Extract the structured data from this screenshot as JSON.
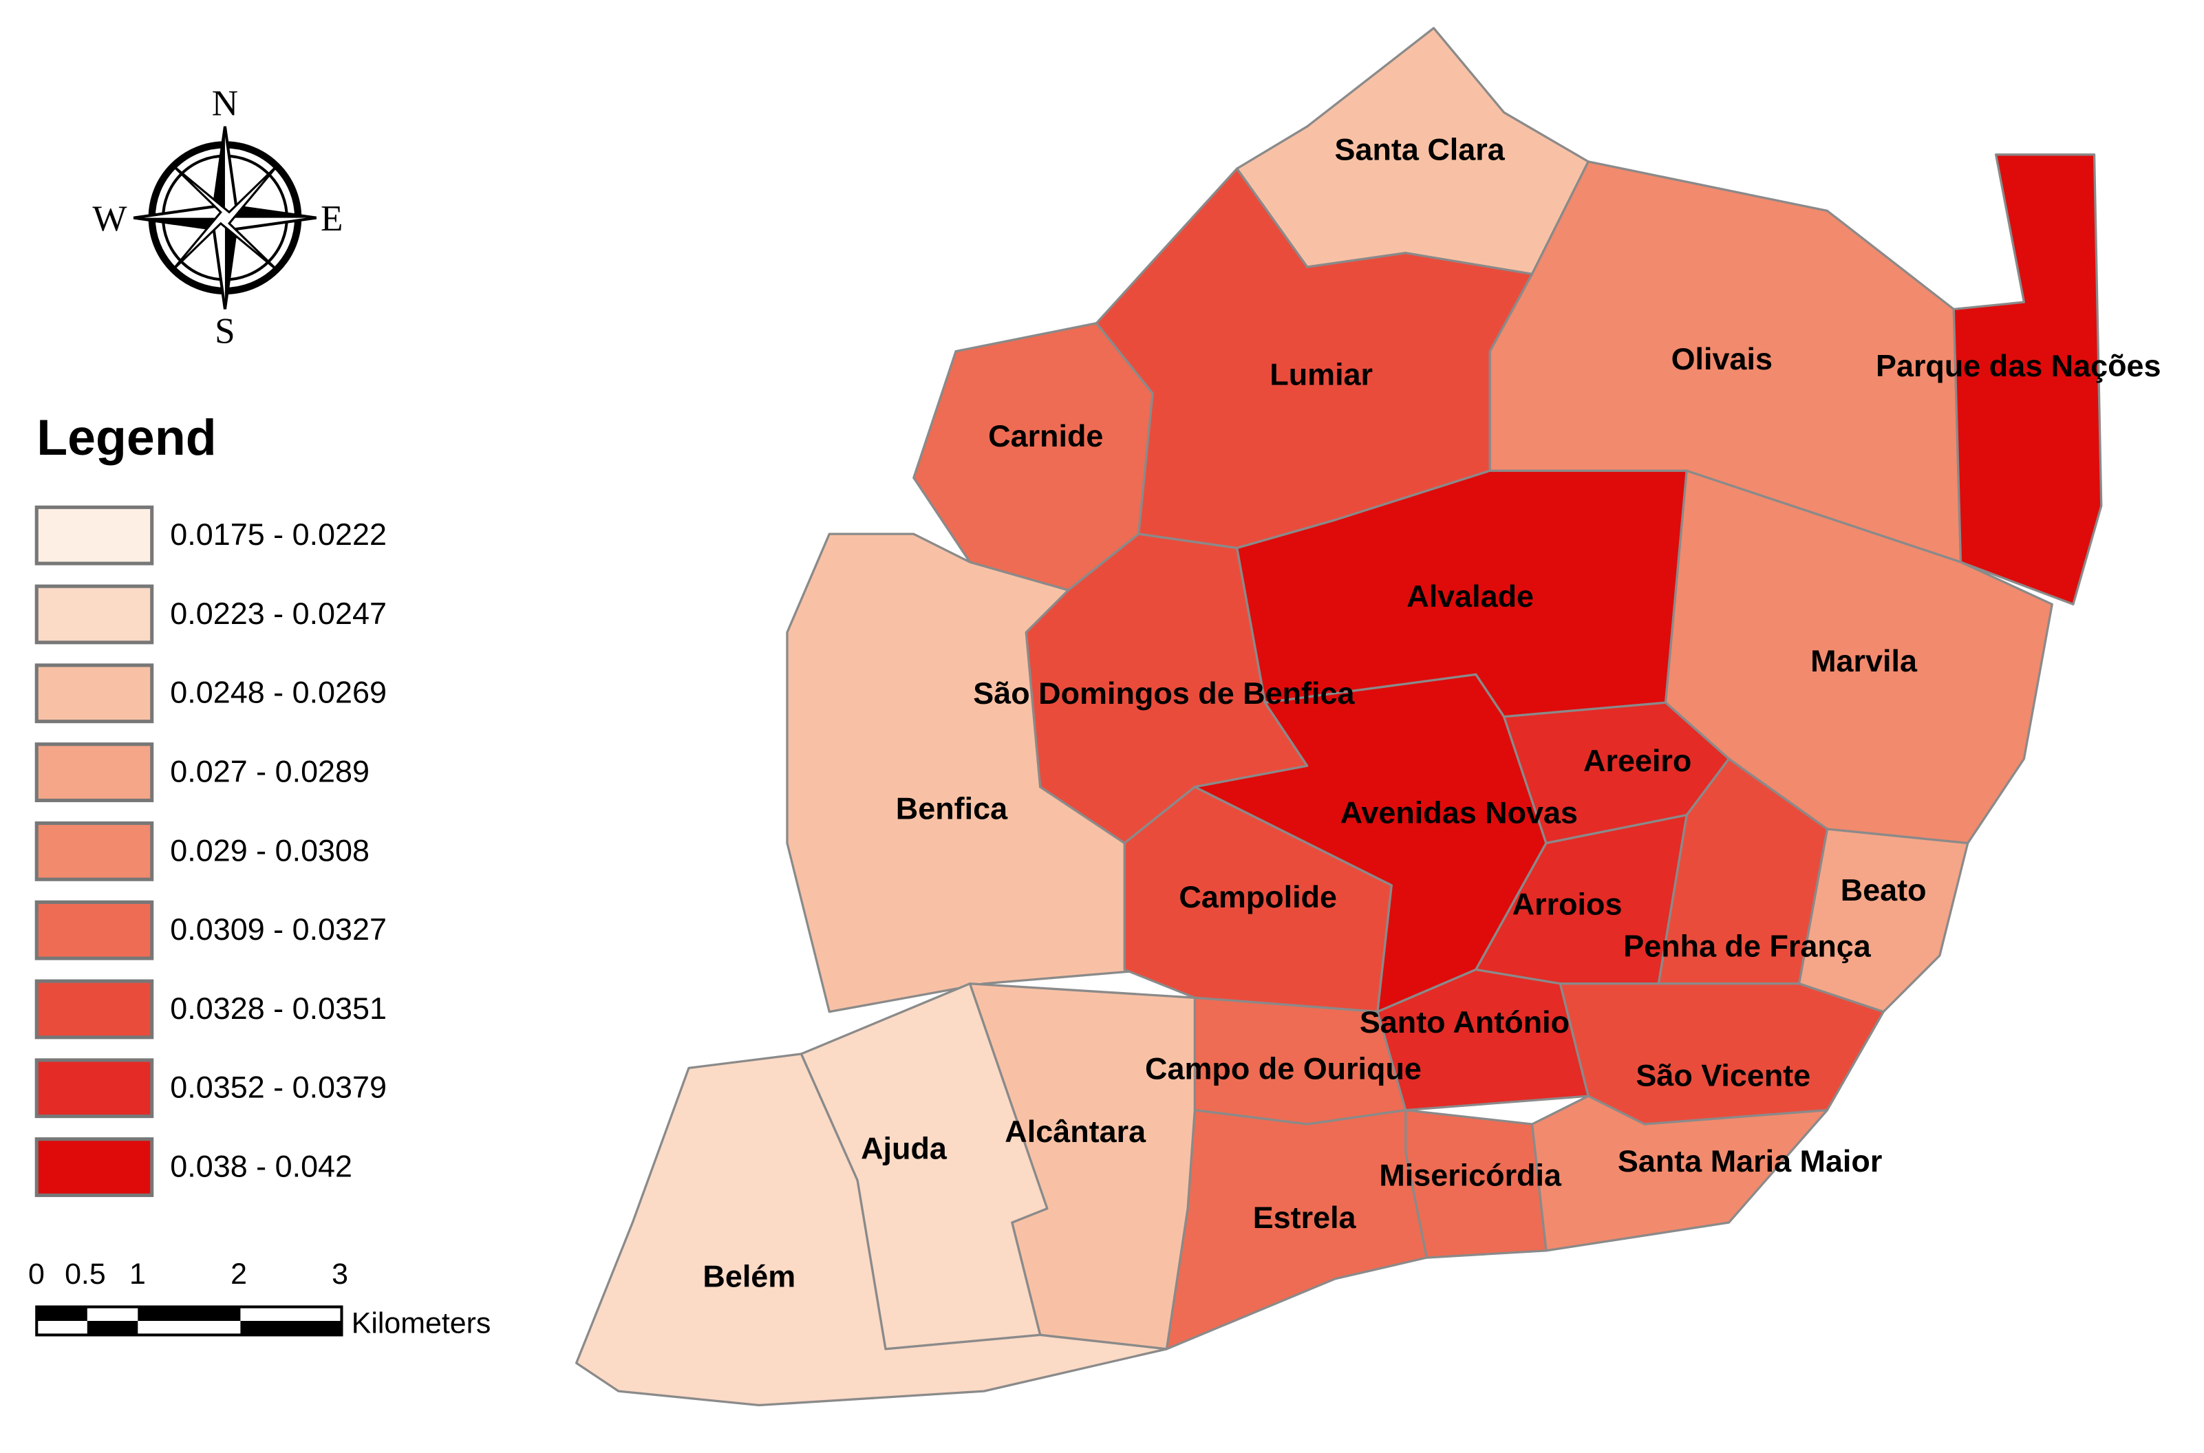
{
  "compass": {
    "north": "N",
    "south": "S",
    "east": "E",
    "west": "W"
  },
  "legend": {
    "title": "Legend",
    "classes": [
      {
        "label": "0.0175 - 0.0222",
        "color": "#fdefe3"
      },
      {
        "label": "0.0223 - 0.0247",
        "color": "#fbdac6"
      },
      {
        "label": "0.0248 - 0.0269",
        "color": "#f8c1a5"
      },
      {
        "label": "0.027 - 0.0289",
        "color": "#f5a688"
      },
      {
        "label": "0.029 - 0.0308",
        "color": "#f28a6d"
      },
      {
        "label": "0.0309 - 0.0327",
        "color": "#ee6c53"
      },
      {
        "label": "0.0328 - 0.0351",
        "color": "#ea4c3c"
      },
      {
        "label": "0.0352 - 0.0379",
        "color": "#e42b26"
      },
      {
        "label": "0.038 - 0.042",
        "color": "#df0b0b"
      }
    ]
  },
  "scale_bar": {
    "labels": [
      "0",
      "0.5",
      "1",
      "2",
      "3"
    ],
    "unit": "Kilometers"
  },
  "parishes": [
    "Santa Clara",
    "Lumiar",
    "Carnide",
    "Olivais",
    "Parque das Nações",
    "Alvalade",
    "Marvila",
    "São Domingos de Benfica",
    "Benfica",
    "Avenidas Novas",
    "Areeiro",
    "Campolide",
    "Arroios",
    "Penha de França",
    "Beato",
    "Santo António",
    "São Vicente",
    "Campo de Ourique",
    "Santa Maria Maior",
    "Misericórdia",
    "Estrela",
    "Alcântara",
    "Ajuda",
    "Belém"
  ]
}
